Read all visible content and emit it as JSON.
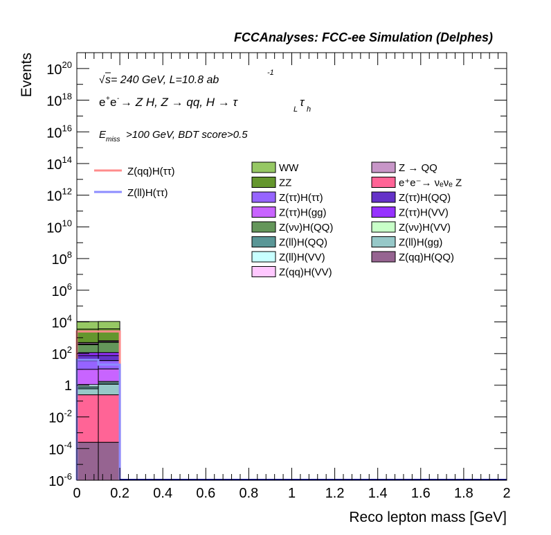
{
  "chart_data": {
    "type": "bar",
    "stacked": true,
    "title": "FCCAnalyses: FCC-ee Simulation (Delphes)",
    "xlabel": "Reco lepton mass [GeV]",
    "ylabel": "Events",
    "xlim": [
      0,
      2
    ],
    "ylim": [
      1e-06,
      1e+21
    ],
    "yscale": "log",
    "grid": false,
    "xticks": [
      "0",
      "0.2",
      "0.4",
      "0.6",
      "0.8",
      "1",
      "1.2",
      "1.4",
      "1.6",
      "1.8",
      "2"
    ],
    "yticks": [
      {
        "base": "10",
        "exp": "20",
        "value": 1e+20
      },
      {
        "base": "10",
        "exp": "18",
        "value": 1e+18
      },
      {
        "base": "10",
        "exp": "16",
        "value": 1e+16
      },
      {
        "base": "10",
        "exp": "14",
        "value": 100000000000000.0
      },
      {
        "base": "10",
        "exp": "12",
        "value": 1000000000000.0
      },
      {
        "base": "10",
        "exp": "10",
        "value": 10000000000.0
      },
      {
        "base": "10",
        "exp": "8",
        "value": 100000000.0
      },
      {
        "base": "10",
        "exp": "6",
        "value": 1000000.0
      },
      {
        "base": "10",
        "exp": "4",
        "value": 10000.0
      },
      {
        "base": "10",
        "exp": "2",
        "value": 100
      },
      {
        "base": "1",
        "exp": "",
        "value": 1
      },
      {
        "base": "10",
        "exp": "-2",
        "value": 0.01
      },
      {
        "base": "10",
        "exp": "-4",
        "value": 0.0001
      },
      {
        "base": "10",
        "exp": "-6",
        "value": 1e-06
      }
    ],
    "annotations": {
      "sqrt_s": "s",
      "energy_lumi": " = 240 GeV, L=10.8 ab",
      "lumi_exp": "-1",
      "process_main": "e",
      "process_rest": " → Z H, Z  → qq, H  → τ",
      "tau_l_sub": "L",
      "tau_h": "τ",
      "tau_h_sub": "h",
      "cut_e": "E",
      "cut_sub": "miss",
      "cut_rest": ">100 GeV, BDT score>0.5"
    },
    "bins": [
      [
        0.0,
        0.1
      ],
      [
        0.1,
        0.2
      ]
    ],
    "stack_bottom_to_top": [
      {
        "name": "Z(qq)H(QQ)",
        "color": "#966491",
        "values": [
          0.00025,
          0.00025
        ]
      },
      {
        "name": "e⁺e⁻→ νₑνₑ Z",
        "color": "#ff6496",
        "values": [
          0.25,
          0.25
        ]
      },
      {
        "name": "Z(ll)H(gg)",
        "color": "#96c8c8",
        "values": [
          0.35,
          0.9
        ]
      },
      {
        "name": "Z(ll)H(QQ)",
        "color": "#5a9696",
        "values": [
          0.2,
          0.3
        ]
      },
      {
        "name": "Z(ll)H(VV)",
        "color": "#c8ffff",
        "values": [
          0.3,
          0.3
        ]
      },
      {
        "name": "Z(ττ)H(gg)",
        "color": "#c864ff",
        "values": [
          9,
          9
        ]
      },
      {
        "name": "Z(ττ)H(ττ)",
        "color": "#9664ff",
        "values": [
          25,
          25
        ]
      },
      {
        "name": "Z(ττ)H(QQ)",
        "color": "#6432c8",
        "values": [
          40,
          40
        ]
      },
      {
        "name": "Z(ττ)H(VV)",
        "color": "#9632ff",
        "values": [
          40,
          40
        ]
      },
      {
        "name": "Z(νν)H(QQ)",
        "color": "#64965a",
        "values": [
          250,
          400
        ]
      },
      {
        "name": "Z(qq)H(VV)",
        "color": "#ffc8ff",
        "values": [
          30,
          30
        ]
      },
      {
        "name": "Z → QQ",
        "color": "#c896c8",
        "values": [
          80,
          80
        ]
      },
      {
        "name": "Z(νν)H(VV)",
        "color": "#c8ffc8",
        "values": [
          20,
          20
        ]
      },
      {
        "name": "ZZ",
        "color": "#64962d",
        "values": [
          3000,
          3000
        ]
      },
      {
        "name": "WW",
        "color": "#96c864",
        "values": [
          7000,
          7000
        ]
      }
    ],
    "signal_lines": [
      {
        "name": "Z(qq)H(ττ)",
        "color": "#ff8c8c",
        "values": [
          2500,
          2500
        ]
      },
      {
        "name": "Z(ll)H(ττ)",
        "color": "#8c8cff",
        "values": [
          40,
          20
        ]
      }
    ],
    "legend_signal": [
      "Z(qq)H(ττ)",
      "Z(ll)H(ττ)"
    ],
    "legend_left": [
      {
        "label": "WW",
        "color": "#96c864"
      },
      {
        "label": "ZZ",
        "color": "#64962d"
      },
      {
        "label": "Z(ττ)H(ττ)",
        "color": "#9664ff"
      },
      {
        "label": "Z(ττ)H(gg)",
        "color": "#c864ff"
      },
      {
        "label": "Z(νν)H(QQ)",
        "color": "#64965a"
      },
      {
        "label": "Z(ll)H(QQ)",
        "color": "#5a9696"
      },
      {
        "label": "Z(ll)H(VV)",
        "color": "#c8ffff"
      },
      {
        "label": "Z(qq)H(VV)",
        "color": "#ffc8ff"
      }
    ],
    "legend_right": [
      {
        "label": "Z → QQ",
        "color": "#c896c8"
      },
      {
        "label": "e⁺e⁻→ νₑνₑ Z",
        "color": "#ff6496"
      },
      {
        "label": "Z(ττ)H(QQ)",
        "color": "#6432c8"
      },
      {
        "label": "Z(ττ)H(VV)",
        "color": "#9632ff"
      },
      {
        "label": "Z(νν)H(VV)",
        "color": "#c8ffc8"
      },
      {
        "label": "Z(ll)H(gg)",
        "color": "#96c8c8"
      },
      {
        "label": "Z(qq)H(QQ)",
        "color": "#966491"
      }
    ]
  }
}
